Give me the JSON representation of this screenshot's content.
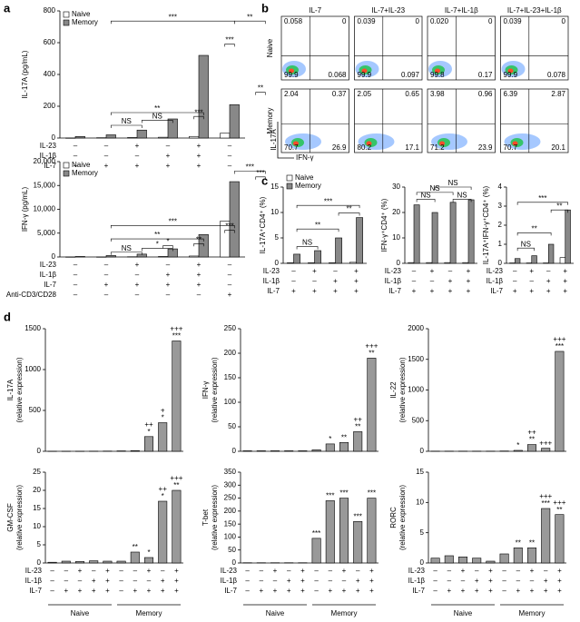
{
  "panel_labels": [
    "a",
    "b",
    "c",
    "d"
  ],
  "chart_data": [
    {
      "type": "bar",
      "ylabel": "IL-17A (pg/mL)",
      "ylim": [
        0,
        800
      ],
      "yticks": [
        0,
        200,
        400,
        600,
        800
      ],
      "series": [
        {
          "name": "Naive",
          "color": "#ffffff",
          "values": [
            0,
            2,
            3,
            5,
            10,
            30
          ]
        },
        {
          "name": "Memory",
          "color": "#888888",
          "values": [
            10,
            20,
            50,
            120,
            520,
            210
          ]
        }
      ],
      "conditions": [
        {
          "name": "IL-23",
          "signs": [
            "–",
            "–",
            "+",
            "–",
            "+",
            "–"
          ]
        },
        {
          "name": "IL-1β",
          "signs": [
            "–",
            "–",
            "–",
            "+",
            "+",
            "–"
          ]
        },
        {
          "name": "IL-7",
          "signs": [
            "–",
            "+",
            "+",
            "+",
            "+",
            "–"
          ]
        }
      ],
      "annotations": [
        "NS",
        "NS",
        "**",
        "***",
        "***",
        "***",
        "**",
        "**"
      ]
    },
    {
      "type": "bar",
      "ylabel": "IFN-γ (pg/mL)",
      "ylim": [
        0,
        20000
      ],
      "yticks": [
        0,
        {
          "value": 5000,
          "label": "5,000"
        },
        {
          "value": 10000,
          "label": "10,000"
        },
        {
          "value": 15000,
          "label": "15,000"
        },
        {
          "value": 20000,
          "label": "20,000"
        }
      ],
      "series": [
        {
          "name": "Naive",
          "color": "#ffffff",
          "values": [
            0,
            0,
            50,
            100,
            200,
            7500
          ]
        },
        {
          "name": "Memory",
          "color": "#888888",
          "values": [
            100,
            300,
            600,
            1700,
            4700,
            15800
          ]
        }
      ],
      "conditions": [
        {
          "name": "IL-23",
          "signs": [
            "–",
            "–",
            "+",
            "–",
            "+",
            "–"
          ]
        },
        {
          "name": "IL-1β",
          "signs": [
            "–",
            "–",
            "–",
            "+",
            "+",
            "–"
          ]
        },
        {
          "name": "IL-7",
          "signs": [
            "–",
            "+",
            "+",
            "+",
            "+",
            "–"
          ]
        },
        {
          "name": "Anti-CD3/CD28",
          "signs": [
            "–",
            "–",
            "–",
            "–",
            "–",
            "+"
          ]
        }
      ],
      "annotations": [
        "NS",
        "*",
        "*",
        "**",
        "**",
        "***",
        "***",
        "***",
        "***"
      ]
    },
    {
      "type": "flow",
      "columns": [
        "IL-7",
        "IL-7+IL-23",
        "IL-7+IL-1β",
        "IL-7+IL-23+IL-1β"
      ],
      "rows": [
        "Naive",
        "Memory"
      ],
      "ylabel": "IL-17A",
      "xlabel": "IFN-γ",
      "quadrants": [
        [
          [
            "0.058",
            "0",
            "99.9",
            "0.068"
          ],
          [
            "0.039",
            "0",
            "99.9",
            "0.097"
          ],
          [
            "0.020",
            "0",
            "99.8",
            "0.17"
          ],
          [
            "0.039",
            "0",
            "99.9",
            "0.078"
          ]
        ],
        [
          [
            "2.04",
            "0.37",
            "70.7",
            "26.9"
          ],
          [
            "2.05",
            "0.65",
            "80.2",
            "17.1"
          ],
          [
            "3.98",
            "0.96",
            "71.2",
            "23.9"
          ],
          [
            "6.39",
            "2.87",
            "70.7",
            "20.1"
          ]
        ]
      ]
    },
    {
      "type": "bar",
      "ylabel": "IL-17A⁺CD4⁺ (%)",
      "ylim": [
        0,
        15
      ],
      "yticks": [
        0,
        5,
        10,
        15
      ],
      "series": [
        {
          "name": "Naive",
          "color": "#ffffff",
          "values": [
            0.1,
            0.1,
            0.1,
            0.2
          ]
        },
        {
          "name": "Memory",
          "color": "#888888",
          "values": [
            1.8,
            2.5,
            5,
            9
          ]
        }
      ],
      "conditions": [
        {
          "name": "IL-23",
          "signs": [
            "–",
            "+",
            "–",
            "+"
          ]
        },
        {
          "name": "IL-1β",
          "signs": [
            "–",
            "–",
            "+",
            "+"
          ]
        },
        {
          "name": "IL-7",
          "signs": [
            "+",
            "+",
            "+",
            "+"
          ]
        }
      ],
      "annotations": [
        "NS",
        "**",
        "***",
        "**"
      ]
    },
    {
      "type": "bar",
      "ylabel": "IFN-γ⁺CD4⁺ (%)",
      "ylim": [
        0,
        30
      ],
      "yticks": [
        0,
        10,
        20,
        30
      ],
      "series": [
        {
          "color": "#ffffff",
          "values": [
            0.3,
            0.3,
            0.3,
            0.3
          ]
        },
        {
          "color": "#888888",
          "values": [
            23,
            20,
            24,
            25
          ]
        }
      ],
      "conditions": [
        {
          "name": "IL-23",
          "signs": [
            "–",
            "+",
            "–",
            "+"
          ]
        },
        {
          "name": "IL-1β",
          "signs": [
            "–",
            "–",
            "+",
            "+"
          ]
        },
        {
          "name": "IL-7",
          "signs": [
            "+",
            "+",
            "+",
            "+"
          ]
        }
      ],
      "annotations": [
        "NS",
        "NS",
        "NS",
        "NS"
      ]
    },
    {
      "type": "bar",
      "ylabel": "IL-17A⁺IFN-γ⁺CD4⁺ (%)",
      "ylim": [
        0,
        4
      ],
      "yticks": [
        0,
        1,
        2,
        3,
        4
      ],
      "series": [
        {
          "color": "#ffffff",
          "values": [
            0.02,
            0.02,
            0.02,
            0.3
          ]
        },
        {
          "color": "#888888",
          "values": [
            0.25,
            0.4,
            1.0,
            2.8
          ]
        }
      ],
      "conditions": [
        {
          "name": "IL-23",
          "signs": [
            "–",
            "+",
            "–",
            "+"
          ]
        },
        {
          "name": "IL-1β",
          "signs": [
            "–",
            "–",
            "+",
            "+"
          ]
        },
        {
          "name": "IL-7",
          "signs": [
            "+",
            "+",
            "+",
            "+"
          ]
        }
      ],
      "annotations": [
        "NS",
        "**",
        "***",
        "**"
      ]
    },
    {
      "type": "bar",
      "ylabel": [
        "IL-17A",
        "(relative expression)"
      ],
      "ylim": [
        0,
        1500
      ],
      "yticks": [
        0,
        500,
        1000,
        1500
      ],
      "color": "#999999",
      "values": [
        1,
        1,
        1,
        2,
        3,
        5,
        8,
        180,
        350,
        1350
      ],
      "bar_labels": [
        [],
        [],
        [],
        [],
        [],
        [],
        [],
        [
          "++",
          "*"
        ],
        [
          "+",
          "*"
        ],
        [
          "+++",
          "***"
        ]
      ]
    },
    {
      "type": "bar",
      "ylabel": [
        "IFN-γ",
        "(relative expression)"
      ],
      "ylim": [
        0,
        250
      ],
      "yticks": [
        0,
        50,
        100,
        150,
        200,
        250
      ],
      "color": "#999999",
      "values": [
        1,
        1,
        1,
        1,
        1,
        3,
        15,
        18,
        40,
        190
      ],
      "bar_labels": [
        [],
        [],
        [],
        [],
        [],
        [],
        [
          "*"
        ],
        [
          "**"
        ],
        [
          "++",
          "**"
        ],
        [
          "+++",
          "**"
        ]
      ]
    },
    {
      "type": "bar",
      "ylabel": [
        "IL-22",
        "(relative expression)"
      ],
      "ylim": [
        0,
        2000
      ],
      "yticks": [
        0,
        500,
        1000,
        1500,
        2000
      ],
      "color": "#999999",
      "values": [
        3,
        3,
        3,
        3,
        3,
        5,
        15,
        110,
        50,
        1630
      ],
      "bar_labels": [
        [],
        [],
        [],
        [],
        [],
        [],
        [
          "*"
        ],
        [
          "++",
          "**"
        ],
        [
          "+++"
        ],
        [
          "+++",
          "***"
        ]
      ]
    },
    {
      "type": "bar",
      "ylabel": [
        "GM-CSF",
        "(relative expression)"
      ],
      "ylim": [
        0,
        25
      ],
      "yticks": [
        0,
        5,
        10,
        15,
        20,
        25
      ],
      "color": "#999999",
      "values": [
        0.2,
        0.5,
        0.4,
        0.6,
        0.5,
        0.5,
        3,
        1.5,
        17,
        20
      ],
      "bar_labels": [
        [],
        [],
        [],
        [],
        [],
        [],
        [
          "**"
        ],
        [
          "*"
        ],
        [
          "++",
          "*"
        ],
        [
          "+++",
          "**"
        ]
      ],
      "conditions": [
        {
          "name": "IL-23",
          "signs": [
            "–",
            "–",
            "+",
            "–",
            "+",
            "–",
            "–",
            "+",
            "–",
            "+"
          ]
        },
        {
          "name": "IL-1β",
          "signs": [
            "–",
            "–",
            "–",
            "+",
            "+",
            "–",
            "–",
            "–",
            "+",
            "+"
          ]
        },
        {
          "name": "IL-7",
          "signs": [
            "–",
            "+",
            "+",
            "+",
            "+",
            "–",
            "+",
            "+",
            "+",
            "+"
          ]
        }
      ],
      "groups": [
        "Naive",
        "Memory"
      ]
    },
    {
      "type": "bar",
      "ylabel": [
        "T-bet",
        "(relative expression)"
      ],
      "ylim": [
        0,
        350
      ],
      "yticks": [
        0,
        50,
        100,
        150,
        200,
        250,
        300,
        350
      ],
      "color": "#999999",
      "values": [
        1,
        1,
        1,
        1,
        1,
        95,
        240,
        250,
        160,
        250
      ],
      "bar_labels": [
        [],
        [],
        [],
        [],
        [],
        [
          "***"
        ],
        [
          "***"
        ],
        [
          "***"
        ],
        [
          "***"
        ],
        [
          "***"
        ]
      ],
      "conditions": [
        {
          "name": "IL-23",
          "signs": [
            "–",
            "–",
            "+",
            "–",
            "+",
            "–",
            "–",
            "+",
            "–",
            "+"
          ]
        },
        {
          "name": "IL-1β",
          "signs": [
            "–",
            "–",
            "–",
            "+",
            "+",
            "–",
            "–",
            "–",
            "+",
            "+"
          ]
        },
        {
          "name": "IL-7",
          "signs": [
            "–",
            "+",
            "+",
            "+",
            "+",
            "–",
            "+",
            "+",
            "+",
            "+"
          ]
        }
      ],
      "groups": [
        "Naive",
        "Memory"
      ]
    },
    {
      "type": "bar",
      "ylabel": [
        "RORC",
        "(relative expression)"
      ],
      "ylim": [
        0,
        15
      ],
      "yticks": [
        0,
        5,
        10,
        15
      ],
      "color": "#999999",
      "values": [
        0.8,
        1.2,
        1.0,
        0.8,
        0.3,
        1.5,
        2.5,
        2.5,
        9,
        8
      ],
      "bar_labels": [
        [],
        [],
        [],
        [],
        [],
        [],
        [
          "**"
        ],
        [
          "**"
        ],
        [
          "+++",
          "***"
        ],
        [
          "+++",
          "**"
        ]
      ],
      "conditions": [
        {
          "name": "IL-23",
          "signs": [
            "–",
            "–",
            "+",
            "–",
            "+",
            "–",
            "–",
            "+",
            "–",
            "+"
          ]
        },
        {
          "name": "IL-1β",
          "signs": [
            "–",
            "–",
            "–",
            "+",
            "+",
            "–",
            "–",
            "–",
            "+",
            "+"
          ]
        },
        {
          "name": "IL-7",
          "signs": [
            "–",
            "+",
            "+",
            "+",
            "+",
            "–",
            "+",
            "+",
            "+",
            "+"
          ]
        }
      ],
      "groups": [
        "Naive",
        "Memory"
      ]
    }
  ]
}
